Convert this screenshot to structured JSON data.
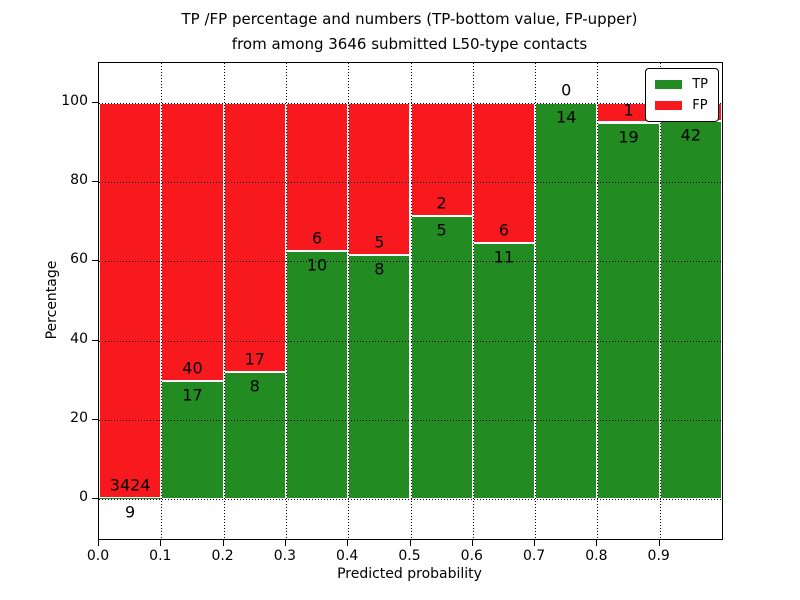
{
  "chart_data": {
    "type": "bar",
    "stacked": true,
    "title_line1": "TP /FP percentage and numbers (TP-bottom value, FP-upper)",
    "title_line2": "from among 3646 submitted L50-type contacts",
    "xlabel": "Predicted probability",
    "ylabel": "Percentage",
    "xlim": [
      0.0,
      1.0
    ],
    "ylim": [
      -10,
      110
    ],
    "xticks": [
      "0.0",
      "0.1",
      "0.2",
      "0.3",
      "0.4",
      "0.5",
      "0.6",
      "0.7",
      "0.8",
      "0.9"
    ],
    "xtick_values": [
      0.0,
      0.1,
      0.2,
      0.3,
      0.4,
      0.5,
      0.6,
      0.7,
      0.8,
      0.9
    ],
    "yticks": [
      "0",
      "20",
      "40",
      "60",
      "80",
      "100"
    ],
    "ytick_values": [
      0,
      20,
      40,
      60,
      80,
      100
    ],
    "grid": "dotted",
    "colors": {
      "tp": "#228b22",
      "fp": "#f8191f",
      "bar_edge": "#ffffff",
      "grid": "#000000"
    },
    "legend": {
      "position": "upper right",
      "items": [
        {
          "label": "TP",
          "color": "#228b22"
        },
        {
          "label": "FP",
          "color": "#f8191f"
        }
      ]
    },
    "series": [
      {
        "name": "TP",
        "values": [
          0.26,
          29.82,
          32.0,
          62.5,
          61.54,
          71.43,
          64.71,
          100.0,
          95.0,
          95.45
        ]
      },
      {
        "name": "FP",
        "values": [
          99.74,
          70.18,
          68.0,
          37.5,
          38.46,
          28.57,
          35.29,
          0.0,
          5.0,
          4.55
        ]
      }
    ],
    "bins": [
      {
        "x0": 0.0,
        "x1": 0.1,
        "tp_pct": 0.26,
        "tp_label": "9",
        "fp_label": "3424"
      },
      {
        "x0": 0.1,
        "x1": 0.2,
        "tp_pct": 29.82,
        "tp_label": "17",
        "fp_label": "40"
      },
      {
        "x0": 0.2,
        "x1": 0.3,
        "tp_pct": 32.0,
        "tp_label": "8",
        "fp_label": "17"
      },
      {
        "x0": 0.3,
        "x1": 0.4,
        "tp_pct": 62.5,
        "tp_label": "10",
        "fp_label": "6"
      },
      {
        "x0": 0.4,
        "x1": 0.5,
        "tp_pct": 61.54,
        "tp_label": "8",
        "fp_label": "5"
      },
      {
        "x0": 0.5,
        "x1": 0.6,
        "tp_pct": 71.43,
        "tp_label": "5",
        "fp_label": "2"
      },
      {
        "x0": 0.6,
        "x1": 0.7,
        "tp_pct": 64.71,
        "tp_label": "11",
        "fp_label": "6"
      },
      {
        "x0": 0.7,
        "x1": 0.8,
        "tp_pct": 100.0,
        "tp_label": "14",
        "fp_label": "0"
      },
      {
        "x0": 0.8,
        "x1": 0.9,
        "tp_pct": 95.0,
        "tp_label": "19",
        "fp_label": "1"
      },
      {
        "x0": 0.9,
        "x1": 1.0,
        "tp_pct": 95.45,
        "tp_label": "42",
        "fp_label": ""
      }
    ]
  }
}
